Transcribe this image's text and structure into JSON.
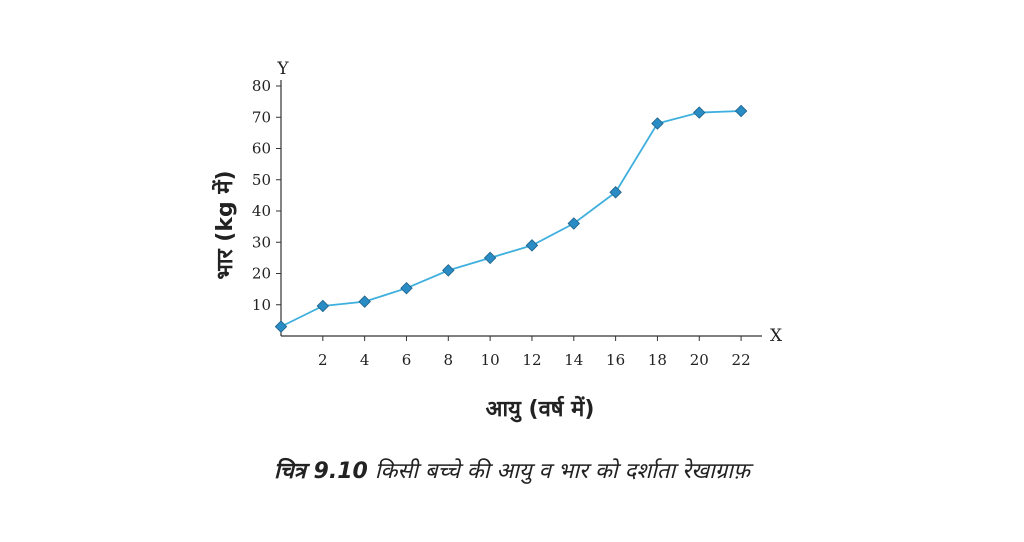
{
  "chart_data": {
    "type": "line",
    "x_axis_letter": "X",
    "y_axis_letter": "Y",
    "xlabel": "आयु (वर्ष में)",
    "ylabel": "भार (kg में)",
    "caption": {
      "label": "चित्र 9.10",
      "text": "किसी बच्चे की आयु व भार को दर्शाता रेखाग्राफ़"
    },
    "x": [
      0,
      2,
      4,
      6,
      8,
      10,
      12,
      14,
      16,
      18,
      20,
      22
    ],
    "series": [
      {
        "color": "#3fb0de",
        "marker_color": "#2a8cc4",
        "values": [
          3,
          9.6,
          11,
          15.3,
          21,
          25,
          29,
          36,
          46,
          68,
          71.5,
          72
        ]
      }
    ],
    "xlim": [
      0,
      23
    ],
    "xticks": [
      2,
      4,
      6,
      8,
      10,
      12,
      14,
      16,
      18,
      20,
      22
    ],
    "ylim": [
      0,
      80
    ],
    "yticks": [
      10,
      20,
      30,
      40,
      50,
      60,
      70,
      80
    ]
  }
}
